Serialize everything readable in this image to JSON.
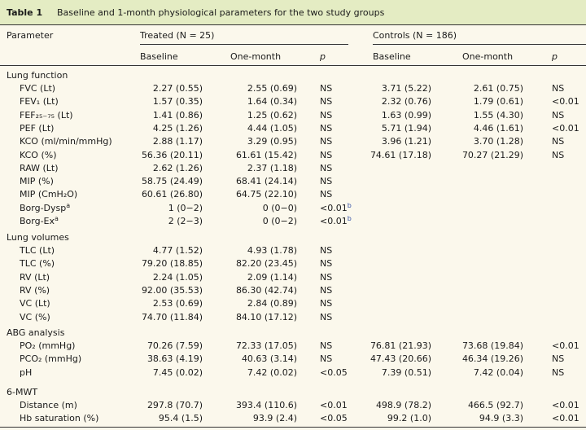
{
  "table": {
    "number": "Table 1",
    "caption": "Baseline and 1-month physiological parameters for the two study groups",
    "header": {
      "parameter": "Parameter",
      "treated": "Treated (N = 25)",
      "controls": "Controls (N = 186)",
      "baseline": "Baseline",
      "one_month": "One-month",
      "p": "p"
    },
    "sections": [
      {
        "title": "Lung function",
        "rows": [
          {
            "label": "FVC (Lt)",
            "tb": "2.27 (0.55)",
            "tm": "2.55 (0.69)",
            "tp": "NS",
            "cb": "3.71 (5.22)",
            "cm": "2.61 (0.75)",
            "cp": "NS"
          },
          {
            "label": "FEV₁ (Lt)",
            "tb": "1.57 (0.35)",
            "tm": "1.64 (0.34)",
            "tp": "NS",
            "cb": "2.32 (0.76)",
            "cm": "1.79 (0.61)",
            "cp": "<0.01"
          },
          {
            "label": "FEF₂₅₋₇₅ (Lt)",
            "tb": "1.41 (0.86)",
            "tm": "1.25 (0.62)",
            "tp": "NS",
            "cb": "1.63 (0.99)",
            "cm": "1.55 (4.30)",
            "cp": "NS"
          },
          {
            "label": "PEF (Lt)",
            "tb": "4.25 (1.26)",
            "tm": "4.44 (1.05)",
            "tp": "NS",
            "cb": "5.71 (1.94)",
            "cm": "4.46 (1.61)",
            "cp": "<0.01"
          },
          {
            "label": "KCO (ml/min/mmHg)",
            "tb": "2.88 (1.17)",
            "tm": "3.29 (0.95)",
            "tp": "NS",
            "cb": "3.96 (1.21)",
            "cm": "3.70 (1.28)",
            "cp": "NS"
          },
          {
            "label": "KCO (%)",
            "tb": "56.36 (20.11)",
            "tm": "61.61 (15.42)",
            "tp": "NS",
            "cb": "74.61 (17.18)",
            "cm": "70.27 (21.29)",
            "cp": "NS"
          },
          {
            "label": "RAW (Lt)",
            "tb": "2.62 (1.26)",
            "tm": "2.37 (1.18)",
            "tp": "NS",
            "cb": "",
            "cm": "",
            "cp": ""
          },
          {
            "label": "MIP (%)",
            "tb": "58.75 (24.49)",
            "tm": "68.41 (24.14)",
            "tp": "NS",
            "cb": "",
            "cm": "",
            "cp": ""
          },
          {
            "label": "MIP (CmH₂O)",
            "tb": "60.61 (26.80)",
            "tm": "64.75 (22.10)",
            "tp": "NS",
            "cb": "",
            "cm": "",
            "cp": ""
          },
          {
            "label": "Borg-Dysp",
            "sup": "a",
            "tb": "1 (0−2)",
            "tm": "0 (0−0)",
            "tp": "<0.01",
            "tp_sup": "b",
            "cb": "",
            "cm": "",
            "cp": ""
          },
          {
            "label": "Borg-Ex",
            "sup": "a",
            "tb": "2 (2−3)",
            "tm": "0 (0−2)",
            "tp": "<0.01",
            "tp_sup": "b",
            "cb": "",
            "cm": "",
            "cp": ""
          }
        ]
      },
      {
        "title": "Lung volumes",
        "rows": [
          {
            "label": "TLC (Lt)",
            "tb": "4.77 (1.52)",
            "tm": "4.93 (1.78)",
            "tp": "NS",
            "cb": "",
            "cm": "",
            "cp": ""
          },
          {
            "label": "TLC (%)",
            "tb": "79.20 (18.85)",
            "tm": "82.20 (23.45)",
            "tp": "NS",
            "cb": "",
            "cm": "",
            "cp": ""
          },
          {
            "label": "RV (Lt)",
            "tb": "2.24 (1.05)",
            "tm": "2.09 (1.14)",
            "tp": "NS",
            "cb": "",
            "cm": "",
            "cp": ""
          },
          {
            "label": "RV (%)",
            "tb": "92.00 (35.53)",
            "tm": "86.30 (42.74)",
            "tp": "NS",
            "cb": "",
            "cm": "",
            "cp": ""
          },
          {
            "label": "VC (Lt)",
            "tb": "2.53 (0.69)",
            "tm": "2.84 (0.89)",
            "tp": "NS",
            "cb": "",
            "cm": "",
            "cp": ""
          },
          {
            "label": "VC (%)",
            "tb": "74.70 (11.84)",
            "tm": "84.10 (17.12)",
            "tp": "NS",
            "cb": "",
            "cm": "",
            "cp": ""
          }
        ]
      },
      {
        "title": "ABG analysis",
        "rows": [
          {
            "label": "PO₂ (mmHg)",
            "tb": "70.26 (7.59)",
            "tm": "72.33 (17.05)",
            "tp": "NS",
            "cb": "76.81 (21.93)",
            "cm": "73.68 (19.84)",
            "cp": "<0.01"
          },
          {
            "label": "PCO₂ (mmHg)",
            "tb": "38.63 (4.19)",
            "tm": "40.63 (3.14)",
            "tp": "NS",
            "cb": "47.43 (20.66)",
            "cm": "46.34 (19.26)",
            "cp": "NS"
          },
          {
            "label": "pH",
            "tb": "7.45 (0.02)",
            "tm": "7.42 (0.02)",
            "tp": "<0.05",
            "cb": "7.39 (0.51)",
            "cm": "7.42 (0.04)",
            "cp": "NS"
          }
        ]
      },
      {
        "title": "6-MWT",
        "rows": [
          {
            "label": "Distance (m)",
            "tb": "297.8 (70.7)",
            "tm": "393.4 (110.6)",
            "tp": "<0.01",
            "cb": "498.9 (78.2)",
            "cm": "466.5 (92.7)",
            "cp": "<0.01"
          },
          {
            "label": "Hb saturation (%)",
            "tb": "95.4 (1.5)",
            "tm": "93.9 (2.4)",
            "tp": "<0.05",
            "cb": "99.2 (1.0)",
            "cm": "94.9 (3.3)",
            "cp": "<0.01"
          }
        ]
      }
    ]
  }
}
